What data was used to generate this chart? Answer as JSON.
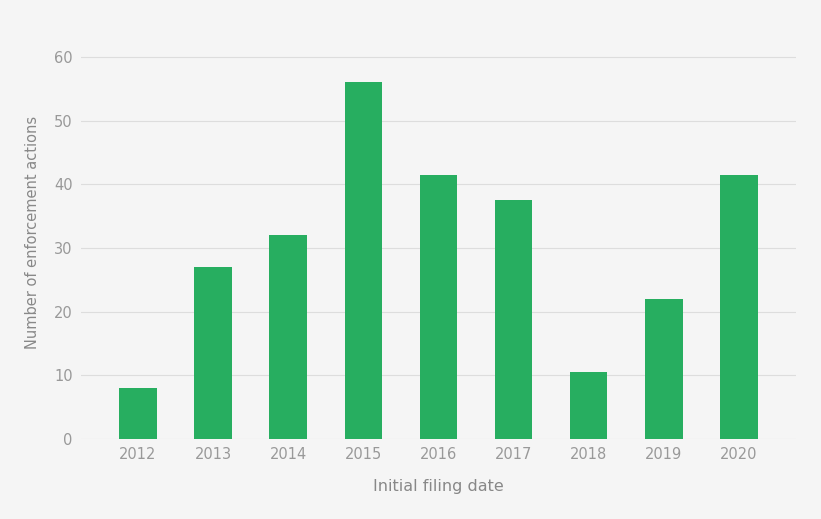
{
  "categories": [
    "2012",
    "2013",
    "2014",
    "2015",
    "2016",
    "2017",
    "2018",
    "2019",
    "2020"
  ],
  "values": [
    8,
    27,
    32,
    56,
    41.5,
    37.5,
    10.5,
    22,
    41.5
  ],
  "bar_color": "#27ae60",
  "xlabel": "Initial filing date",
  "ylabel": "Number of enforcement actions",
  "ylim": [
    0,
    65
  ],
  "yticks": [
    0,
    10,
    20,
    30,
    40,
    50,
    60
  ],
  "background_color": "#f5f5f5",
  "xlabel_fontsize": 11.5,
  "ylabel_fontsize": 10.5,
  "tick_fontsize": 10.5,
  "tick_color": "#999999",
  "label_color": "#888888",
  "grid_color": "#dddddd",
  "bar_width": 0.5
}
